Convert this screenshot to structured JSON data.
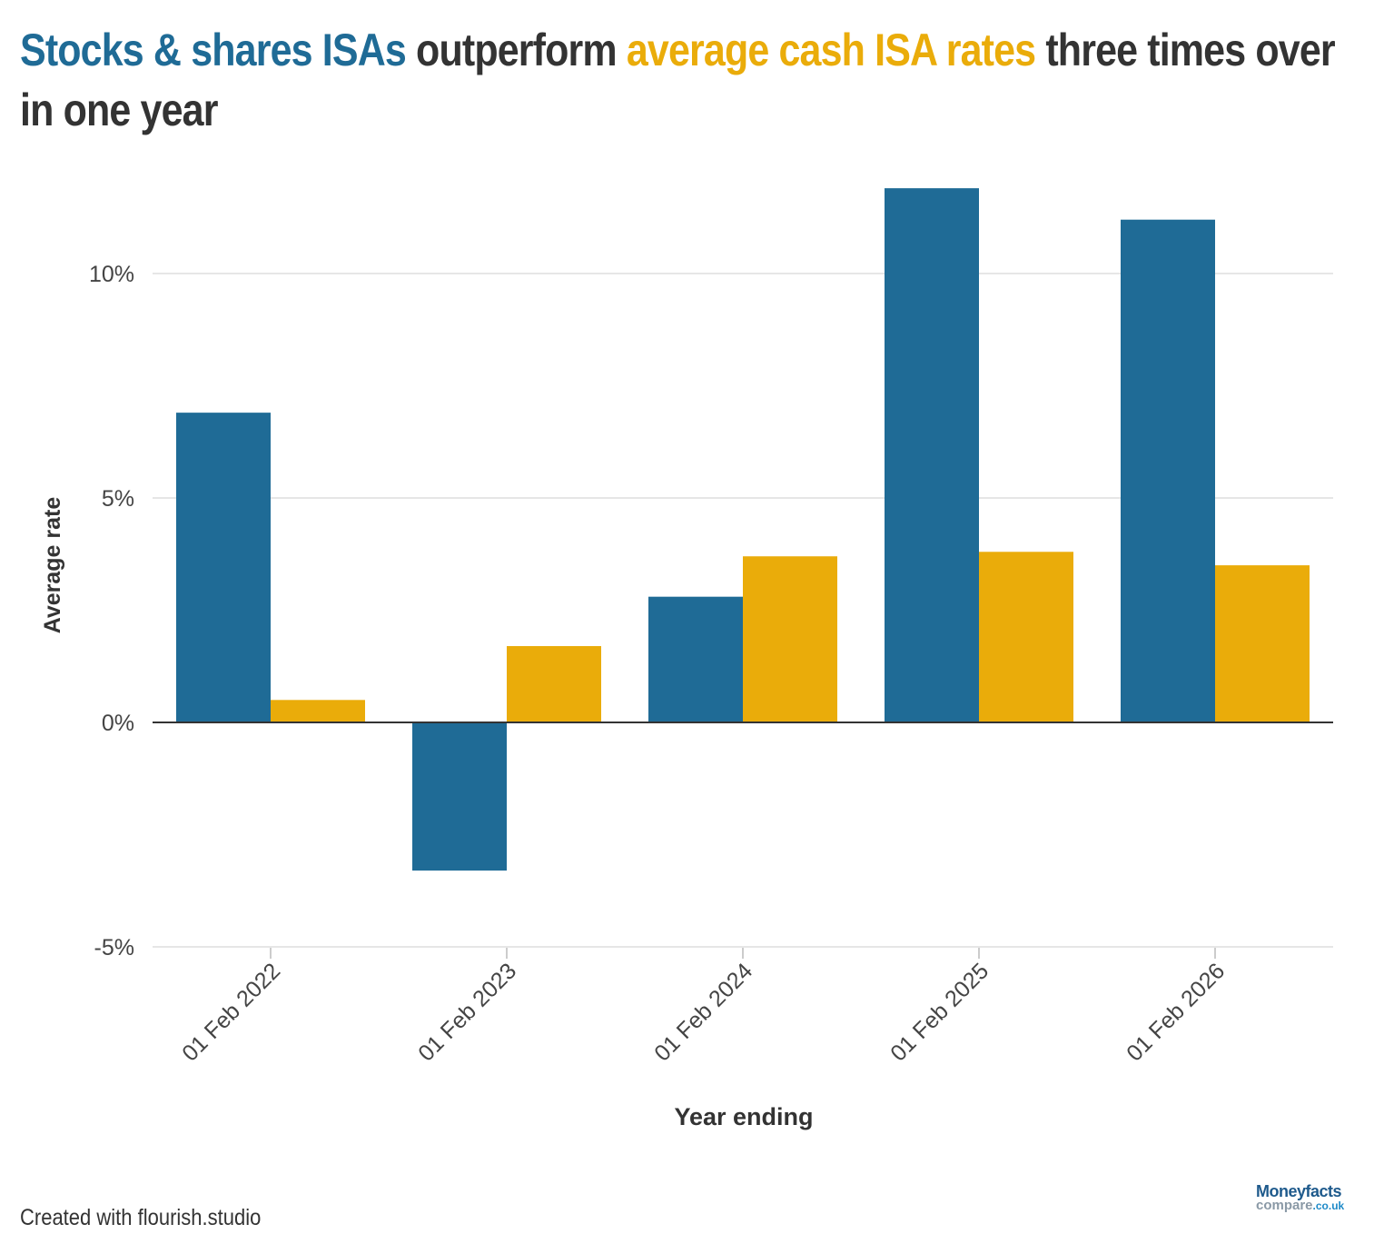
{
  "title": {
    "part1": "Stocks & shares ISAs",
    "part2": " outperform ",
    "part3": "average cash ISA rates",
    "part4": " three times over in one year"
  },
  "footer": "Created with flourish.studio",
  "logo": {
    "line1": "Moneyfacts",
    "line2": "compare",
    "line2_suffix": ".co.uk"
  },
  "colors": {
    "stocks": "#1f6b96",
    "cash": "#eaac0a",
    "text": "#333333",
    "grid": "#e6e6e6"
  },
  "chart_data": {
    "type": "bar",
    "xlabel": "Year ending",
    "ylabel": "Average rate",
    "categories": [
      "01 Feb 2022",
      "01 Feb 2023",
      "01 Feb 2024",
      "01 Feb 2025",
      "01 Feb 2026"
    ],
    "series": [
      {
        "values": [
          6.9,
          -3.3,
          2.8,
          11.9,
          11.2
        ],
        "color": "#1f6b96"
      },
      {
        "values": [
          0.5,
          1.7,
          3.7,
          3.8,
          3.5
        ],
        "color": "#eaac0a"
      }
    ],
    "ylim": [
      -5,
      12
    ],
    "yticks": [
      {
        "v": -5,
        "label": "-5%"
      },
      {
        "v": 0,
        "label": "0%"
      },
      {
        "v": 5,
        "label": "5%"
      },
      {
        "v": 10,
        "label": "10%"
      }
    ],
    "grid": true,
    "legend": "none (title colour-coded)"
  }
}
